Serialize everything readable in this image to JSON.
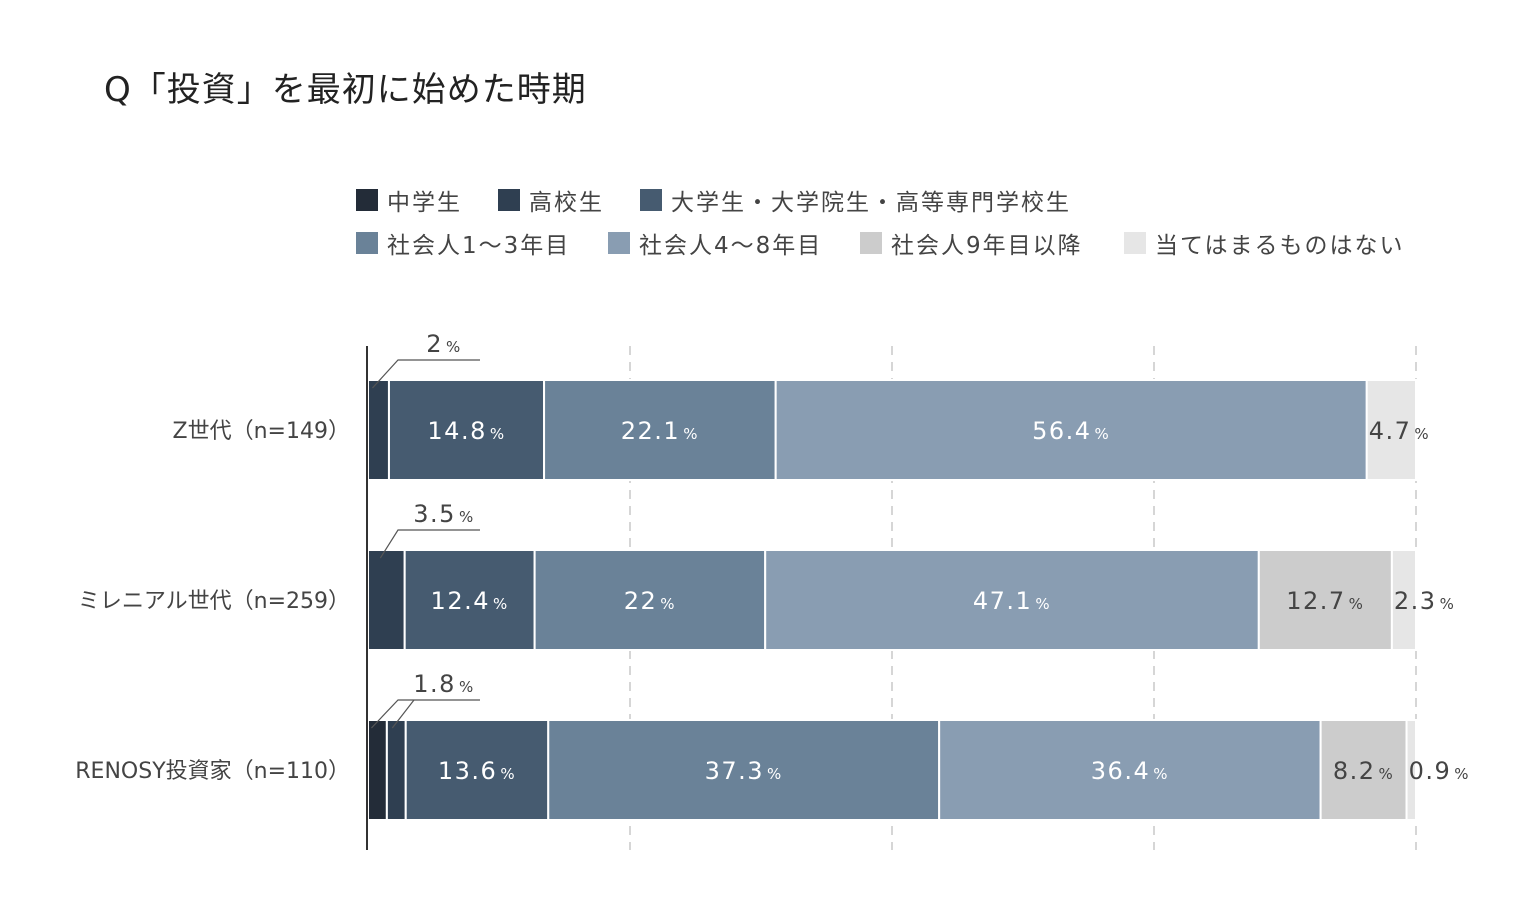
{
  "title": "Q「投資」を最初に始めた時期",
  "colors": {
    "axis": "#333333",
    "grid": "#d6d6d6",
    "separator": "#ffffff",
    "label_light": "#ffffff",
    "label_dark": "#444444"
  },
  "legend": [
    {
      "label": "中学生",
      "color": "#232c38"
    },
    {
      "label": "高校生",
      "color": "#2f3f51"
    },
    {
      "label": "大学生・大学院生・高等専門学校生",
      "color": "#465b70"
    },
    {
      "label": "社会人1〜3年目",
      "color": "#6a8298"
    },
    {
      "label": "社会人4〜8年目",
      "color": "#899db2"
    },
    {
      "label": "社会人9年目以降",
      "color": "#cccccc"
    },
    {
      "label": "当てはまるものはない",
      "color": "#e6e6e6"
    }
  ],
  "chart_data": {
    "type": "bar",
    "orientation": "horizontal-stacked",
    "unit": "%",
    "categories": [
      "Z世代（n=149）",
      "ミレニアル世代（n=259）",
      "RENOSY投資家（n=110）"
    ],
    "series": [
      {
        "name": "中学生",
        "values": [
          0,
          0,
          1.8
        ]
      },
      {
        "name": "高校生",
        "values": [
          2,
          3.5,
          1.8
        ]
      },
      {
        "name": "大学生・大学院生・高等専門学校生",
        "values": [
          14.8,
          12.4,
          13.6
        ]
      },
      {
        "name": "社会人1〜3年目",
        "values": [
          22.1,
          22,
          37.3
        ]
      },
      {
        "name": "社会人4〜8年目",
        "values": [
          56.4,
          47.1,
          36.4
        ]
      },
      {
        "name": "社会人9年目以降",
        "values": [
          0,
          12.7,
          8.2
        ]
      },
      {
        "name": "当てはまるものはない",
        "values": [
          4.7,
          2.3,
          0.9
        ]
      }
    ],
    "labels": [
      [
        null,
        "2",
        "14.8",
        "22.1",
        "56.4",
        null,
        "4.7"
      ],
      [
        null,
        "3.5",
        "12.4",
        "22",
        "47.1",
        "12.7",
        "2.3"
      ],
      [
        "1.8",
        null,
        "13.6",
        "37.3",
        "36.4",
        "8.2",
        "0.9"
      ]
    ],
    "xlim": [
      0,
      100
    ],
    "grid": true
  }
}
